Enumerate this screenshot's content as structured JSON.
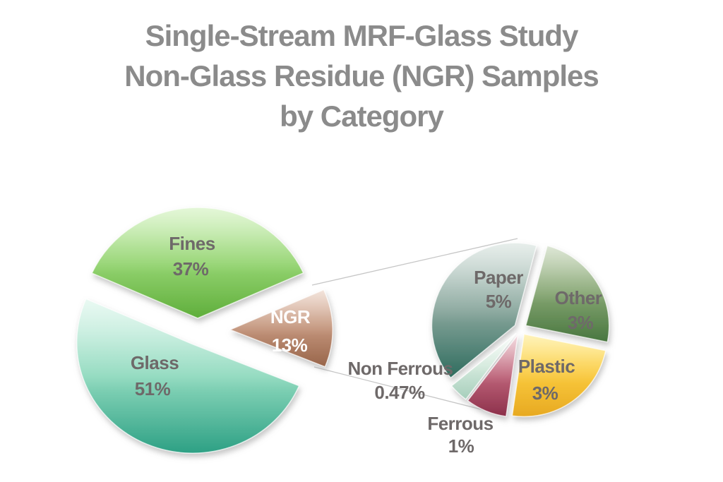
{
  "page": {
    "background": "#ffffff"
  },
  "title": {
    "lines": [
      "Single-Stream MRF-Glass Study",
      "Non-Glass Residue (NGR) Samples",
      "by Category"
    ],
    "color": "#8b8b8b"
  },
  "chart_data": {
    "type": "pie",
    "variant": "pie-of-pie",
    "title": "Single-Stream MRF-Glass Study Non-Glass Residue (NGR) Samples by Category",
    "legend_position": "none",
    "label_color": "#6e6969",
    "connector_color": "#c6c6c6",
    "units": "percent",
    "main_pie": {
      "center": [
        280,
        468
      ],
      "rx": 164,
      "ry": 157,
      "start_angle_deg": -66,
      "slices": [
        {
          "label": "Fines",
          "value": 37,
          "pct_label": "37%",
          "explode": 17,
          "radius_scale": 1,
          "colors": [
            "#c3eda9",
            "#94d471",
            "#5fae3b"
          ],
          "name_pos": [
            272,
            354
          ],
          "pct_pos": [
            270,
            390
          ]
        },
        {
          "label": "NGR",
          "value": 13,
          "pct_label": "13%",
          "explode": 46,
          "radius_scale": 0.885,
          "colors": [
            "#e3c2af",
            "#c2937a",
            "#98654a"
          ],
          "label_color": "#ffffff",
          "name_pos": [
            411,
            458
          ],
          "pct_pos": [
            410,
            498
          ]
        },
        {
          "label": "Glass",
          "value": 51,
          "pct_label": "51%",
          "explode": 21,
          "radius_scale": 1,
          "colors": [
            "#cff2e3",
            "#8ed9bd",
            "#2da084"
          ],
          "name_pos": [
            219,
            523
          ],
          "pct_pos": [
            216,
            560
          ]
        }
      ]
    },
    "secondary_pie": {
      "center": [
        737,
        466
      ],
      "rx": 118,
      "ry": 117,
      "start_angle_deg": -129.4,
      "slices": [
        {
          "label": "Paper",
          "value": 5,
          "pct_label": "5%",
          "explode": 9,
          "radius_scale": 1,
          "colors": [
            "#c9d8d2",
            "#87a59b",
            "#2f6c5e"
          ],
          "name_pos": [
            706,
            402
          ],
          "pct_pos": [
            706,
            436
          ]
        },
        {
          "label": "Other",
          "value": 3,
          "pct_label": "3%",
          "explode": 9,
          "radius_scale": 1,
          "colors": [
            "#b4c8a2",
            "#83a470",
            "#48763f"
          ],
          "name_pos": [
            819,
            431
          ],
          "pct_pos": [
            822,
            466
          ]
        },
        {
          "label": "Plastic",
          "value": 3,
          "pct_label": "3%",
          "explode": 9,
          "radius_scale": 1,
          "colors": [
            "#ffe569",
            "#f9c83b",
            "#e7a922"
          ],
          "name_pos": [
            774,
            528
          ],
          "pct_pos": [
            772,
            566
          ]
        },
        {
          "label": "Ferrous",
          "value": 1,
          "pct_label": "1%",
          "explode": 9,
          "radius_scale": 1,
          "colors": [
            "#e4aeb9",
            "#bd6379",
            "#8c2f4a"
          ],
          "name_pos": [
            652,
            609
          ],
          "pct_pos": [
            653,
            641
          ]
        },
        {
          "label": "Non Ferrous",
          "value": 0.47,
          "pct_label": "0.47%",
          "explode": 9,
          "radius_scale": 1,
          "colors": [
            "#f0f8f2",
            "#d3e9dc",
            "#a6cebb"
          ],
          "name_pos": [
            567,
            531
          ],
          "pct_pos": [
            566,
            565
          ]
        }
      ]
    },
    "connectors": [
      {
        "from": [
          442,
          404
        ],
        "to": [
          733,
          338
        ]
      },
      {
        "from": [
          445,
          520
        ],
        "to": [
          689,
          582
        ]
      }
    ],
    "label_font_px": 26
  }
}
